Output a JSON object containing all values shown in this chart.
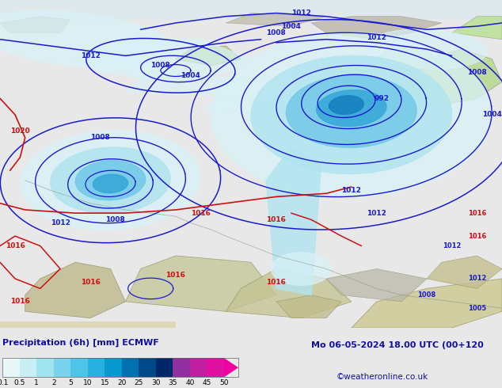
{
  "title_left": "Precipitation (6h) [mm] ECMWF",
  "title_right": "Mo 06-05-2024 18.00 UTC (00+120",
  "subtitle_right": "©weatheronline.co.uk",
  "fig_width": 6.34,
  "fig_height": 4.9,
  "dpi": 100,
  "map_bg": "#c8dfa0",
  "land_gray": "#c8c4b8",
  "ocean_top": "#d0eaf8",
  "precip_lightest": "#d8f2f8",
  "precip_light": "#b0e4f0",
  "precip_mid": "#70c8e8",
  "precip_blue": "#38a8d8",
  "precip_dark": "#1880c0",
  "precip_darkest": "#0050a0",
  "blue_col": "#1a1acd",
  "red_col": "#cc1010",
  "cb_colors": [
    "#e8f8f8",
    "#c8f0f4",
    "#a0e4f0",
    "#78d4ec",
    "#50c4e8",
    "#28b0e0",
    "#0898d0",
    "#0070b0",
    "#004888",
    "#002868",
    "#9030a0",
    "#c020a0",
    "#e010a0",
    "#f000a0"
  ],
  "cb_labels": [
    "0.1",
    "0.5",
    "1",
    "2",
    "5",
    "10",
    "15",
    "20",
    "25",
    "30",
    "35",
    "40",
    "45",
    "50"
  ]
}
